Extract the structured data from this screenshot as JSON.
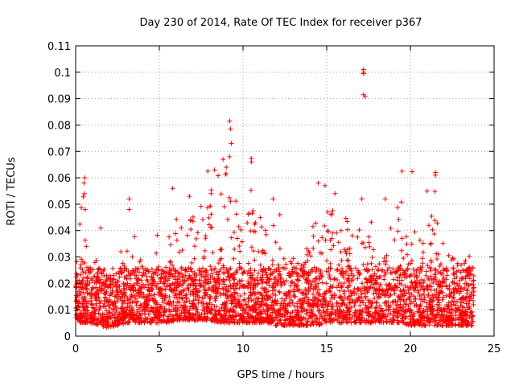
{
  "chart_data": {
    "type": "scatter",
    "title": "Day 230 of 2014, Rate Of TEC Index for receiver p367",
    "xlabel": "GPS time / hours",
    "ylabel": "ROTI / TECUs",
    "xlim": [
      0,
      25
    ],
    "ylim": [
      0,
      0.11
    ],
    "x_ticks": [
      0,
      5,
      10,
      15,
      20,
      25
    ],
    "y_ticks": [
      0,
      0.01,
      0.02,
      0.03,
      0.04,
      0.05,
      0.06,
      0.07,
      0.08,
      0.09,
      0.1,
      0.11
    ],
    "x_tick_labels": [
      "0",
      "5",
      "10",
      "15",
      "20",
      "25"
    ],
    "y_tick_labels": [
      "0",
      "0.01",
      "0.02",
      "0.03",
      "0.04",
      "0.05",
      "0.06",
      "0.07",
      "0.08",
      "0.09",
      "0.1",
      "0.11"
    ],
    "grid": true,
    "marker": "plus",
    "series_color": "#ff0000",
    "x_data_extent": [
      0,
      23.8
    ],
    "envelope": {
      "x": [
        0,
        0.3,
        0.5,
        1,
        1.5,
        2,
        2.5,
        3,
        3.5,
        4,
        4.5,
        5,
        5.5,
        6,
        6.5,
        7,
        7.5,
        8,
        8.5,
        9,
        9.5,
        10,
        10.5,
        11,
        11.5,
        12,
        12.5,
        13,
        13.5,
        14,
        14.5,
        15,
        15.5,
        16,
        16.5,
        17,
        17.5,
        18,
        18.5,
        19,
        19.5,
        20,
        20.5,
        21,
        21.5,
        22,
        22.5,
        23,
        23.5,
        23.8
      ],
      "upper": [
        0.033,
        0.05,
        0.058,
        0.035,
        0.025,
        0.023,
        0.025,
        0.035,
        0.04,
        0.028,
        0.03,
        0.042,
        0.038,
        0.045,
        0.042,
        0.046,
        0.052,
        0.058,
        0.062,
        0.078,
        0.058,
        0.035,
        0.06,
        0.045,
        0.046,
        0.04,
        0.035,
        0.03,
        0.032,
        0.04,
        0.045,
        0.05,
        0.048,
        0.05,
        0.045,
        0.04,
        0.045,
        0.04,
        0.038,
        0.045,
        0.055,
        0.04,
        0.042,
        0.045,
        0.058,
        0.035,
        0.03,
        0.028,
        0.032,
        0.025
      ],
      "lower": [
        0.006,
        0.005,
        0.005,
        0.005,
        0.004,
        0.003,
        0.004,
        0.005,
        0.005,
        0.005,
        0.005,
        0.005,
        0.005,
        0.006,
        0.006,
        0.006,
        0.006,
        0.006,
        0.005,
        0.005,
        0.005,
        0.005,
        0.005,
        0.005,
        0.005,
        0.004,
        0.004,
        0.004,
        0.004,
        0.004,
        0.004,
        0.005,
        0.005,
        0.005,
        0.005,
        0.005,
        0.005,
        0.005,
        0.005,
        0.005,
        0.005,
        0.004,
        0.004,
        0.004,
        0.004,
        0.004,
        0.004,
        0.004,
        0.004,
        0.004
      ]
    },
    "outliers": [
      {
        "x": 17.2,
        "y": 0.1
      },
      {
        "x": 17.2,
        "y": 0.0995
      },
      {
        "x": 17.2,
        "y": 0.101
      },
      {
        "x": 17.2,
        "y": 0.0915
      },
      {
        "x": 17.3,
        "y": 0.0908
      },
      {
        "x": 9.2,
        "y": 0.0815
      },
      {
        "x": 9.25,
        "y": 0.0785
      },
      {
        "x": 9.3,
        "y": 0.073
      },
      {
        "x": 9.2,
        "y": 0.068
      },
      {
        "x": 10.5,
        "y": 0.066
      },
      {
        "x": 10.5,
        "y": 0.0673
      },
      {
        "x": 19.5,
        "y": 0.0625
      },
      {
        "x": 20.1,
        "y": 0.0623
      },
      {
        "x": 21.5,
        "y": 0.062
      },
      {
        "x": 21.5,
        "y": 0.061
      },
      {
        "x": 0.55,
        "y": 0.06
      },
      {
        "x": 0.5,
        "y": 0.058
      },
      {
        "x": 7.9,
        "y": 0.0625
      },
      {
        "x": 8.3,
        "y": 0.063
      },
      {
        "x": 9.0,
        "y": 0.064
      },
      {
        "x": 14.5,
        "y": 0.058
      },
      {
        "x": 14.9,
        "y": 0.057
      },
      {
        "x": 15.5,
        "y": 0.054
      },
      {
        "x": 17.1,
        "y": 0.052
      },
      {
        "x": 18.5,
        "y": 0.052
      },
      {
        "x": 21.0,
        "y": 0.055
      },
      {
        "x": 3.2,
        "y": 0.052
      },
      {
        "x": 3.2,
        "y": 0.048
      },
      {
        "x": 5.8,
        "y": 0.056
      },
      {
        "x": 6.8,
        "y": 0.053
      },
      {
        "x": 1.5,
        "y": 0.041
      },
      {
        "x": 2.7,
        "y": 0.032
      },
      {
        "x": 11.8,
        "y": 0.052
      },
      {
        "x": 12.2,
        "y": 0.046
      }
    ]
  }
}
